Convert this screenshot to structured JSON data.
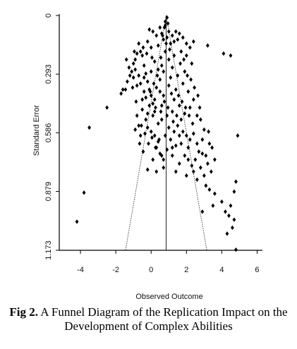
{
  "chart_data": {
    "type": "scatter",
    "title": "",
    "xlabel": "Observed Outcome",
    "ylabel": "Standard Error",
    "xlim": [
      -5.2,
      6.3
    ],
    "ylim": [
      1.173,
      0
    ],
    "x_ticks": [
      -4,
      -2,
      0,
      2,
      4,
      6
    ],
    "x_tick_labels": [
      "-4",
      "-2",
      "0",
      "2",
      "4",
      "6"
    ],
    "y_ticks": [
      0,
      0.293,
      0.586,
      0.879,
      1.173
    ],
    "y_tick_labels": [
      "0",
      "0.293",
      "0.586",
      "0.879",
      "1.173"
    ],
    "estimate": 0.85,
    "funnel_apex": [
      0.85,
      0
    ],
    "funnel_left_base": [
      -1.45,
      1.173
    ],
    "funnel_right_base": [
      3.15,
      1.173
    ],
    "points": [
      [
        -4.2,
        1.03
      ],
      [
        -3.8,
        0.885
      ],
      [
        -3.5,
        0.56
      ],
      [
        -2.5,
        0.46
      ],
      [
        -1.7,
        0.39
      ],
      [
        -1.6,
        0.37
      ],
      [
        -1.45,
        0.37
      ],
      [
        -1.35,
        0.33
      ],
      [
        -1.2,
        0.3
      ],
      [
        -1.1,
        0.28
      ],
      [
        -1.0,
        0.24
      ],
      [
        -0.9,
        0.22
      ],
      [
        -0.8,
        0.19
      ],
      [
        -0.6,
        0.18
      ],
      [
        -0.5,
        0.2
      ],
      [
        -0.4,
        0.25
      ],
      [
        -0.3,
        0.29
      ],
      [
        -0.2,
        0.33
      ],
      [
        -0.1,
        0.37
      ],
      [
        0.0,
        0.4
      ],
      [
        0.1,
        0.44
      ],
      [
        0.2,
        0.48
      ],
      [
        -0.5,
        0.47
      ],
      [
        -0.7,
        0.55
      ],
      [
        -0.8,
        0.5
      ],
      [
        -0.9,
        0.57
      ],
      [
        -0.6,
        0.6
      ],
      [
        -0.3,
        0.52
      ],
      [
        -0.2,
        0.56
      ],
      [
        0.0,
        0.58
      ],
      [
        0.2,
        0.6
      ],
      [
        0.3,
        0.66
      ],
      [
        0.4,
        0.63
      ],
      [
        0.5,
        0.69
      ],
      [
        0.7,
        0.72
      ],
      [
        0.9,
        0.67
      ],
      [
        1.1,
        0.62
      ],
      [
        1.2,
        0.7
      ],
      [
        1.4,
        0.65
      ],
      [
        1.6,
        0.6
      ],
      [
        1.8,
        0.58
      ],
      [
        2.0,
        0.6
      ],
      [
        2.2,
        0.62
      ],
      [
        2.4,
        0.59
      ],
      [
        2.6,
        0.64
      ],
      [
        2.7,
        0.68
      ],
      [
        2.5,
        0.72
      ],
      [
        2.3,
        0.75
      ],
      [
        2.9,
        0.62
      ],
      [
        3.0,
        0.57
      ],
      [
        2.8,
        0.52
      ],
      [
        2.6,
        0.5
      ],
      [
        2.2,
        0.46
      ],
      [
        1.9,
        0.49
      ],
      [
        1.7,
        0.52
      ],
      [
        1.5,
        0.55
      ],
      [
        -0.1,
        0.07
      ],
      [
        0.1,
        0.08
      ],
      [
        0.3,
        0.1
      ],
      [
        0.5,
        0.06
      ],
      [
        0.6,
        0.09
      ],
      [
        0.7,
        0.12
      ],
      [
        0.8,
        0.05
      ],
      [
        0.9,
        0.11
      ],
      [
        1.0,
        0.08
      ],
      [
        1.1,
        0.14
      ],
      [
        1.2,
        0.1
      ],
      [
        1.3,
        0.13
      ],
      [
        1.4,
        0.08
      ],
      [
        1.5,
        0.12
      ],
      [
        1.6,
        0.09
      ],
      [
        1.8,
        0.11
      ],
      [
        2.0,
        0.14
      ],
      [
        2.2,
        0.16
      ],
      [
        2.4,
        0.13
      ],
      [
        1.7,
        0.18
      ],
      [
        1.3,
        0.2
      ],
      [
        1.0,
        0.22
      ],
      [
        0.6,
        0.25
      ],
      [
        0.2,
        0.23
      ],
      [
        0.0,
        0.16
      ],
      [
        -0.2,
        0.13
      ],
      [
        0.4,
        0.15
      ],
      [
        0.8,
        0.18
      ],
      [
        1.2,
        0.26
      ],
      [
        1.5,
        0.3
      ],
      [
        1.8,
        0.34
      ],
      [
        2.1,
        0.38
      ],
      [
        2.4,
        0.42
      ],
      [
        0.5,
        0.32
      ],
      [
        0.3,
        0.36
      ],
      [
        0.7,
        0.4
      ],
      [
        1.0,
        0.35
      ],
      [
        1.3,
        0.42
      ],
      [
        1.6,
        0.45
      ],
      [
        0.9,
        0.5
      ],
      [
        0.6,
        0.45
      ],
      [
        0.2,
        0.42
      ],
      [
        -0.3,
        0.41
      ],
      [
        -0.6,
        0.34
      ],
      [
        -0.4,
        0.31
      ],
      [
        0.0,
        0.28
      ],
      [
        0.4,
        0.27
      ],
      [
        1.1,
        0.31
      ],
      [
        1.4,
        0.37
      ],
      [
        1.9,
        0.28
      ],
      [
        2.3,
        0.24
      ],
      [
        2.0,
        0.2
      ],
      [
        0.7,
        0.28
      ],
      [
        0.5,
        0.38
      ],
      [
        1.2,
        0.48
      ],
      [
        1.0,
        0.56
      ],
      [
        0.8,
        0.6
      ],
      [
        0.4,
        0.54
      ],
      [
        0.1,
        0.5
      ],
      [
        -0.1,
        0.45
      ],
      [
        -0.4,
        0.38
      ],
      [
        -0.7,
        0.3
      ],
      [
        -0.9,
        0.27
      ],
      [
        -1.0,
        0.31
      ],
      [
        -0.8,
        0.35
      ],
      [
        -0.5,
        0.42
      ],
      [
        -0.2,
        0.49
      ],
      [
        0.6,
        0.52
      ],
      [
        1.3,
        0.58
      ],
      [
        1.7,
        0.64
      ],
      [
        2.1,
        0.66
      ],
      [
        2.9,
        0.69
      ],
      [
        3.1,
        0.7
      ],
      [
        3.2,
        0.74
      ],
      [
        3.4,
        0.78
      ],
      [
        3.0,
        0.8
      ],
      [
        2.6,
        0.82
      ],
      [
        2.4,
        0.78
      ],
      [
        3.3,
        0.87
      ],
      [
        3.6,
        0.89
      ],
      [
        3.5,
        0.95
      ],
      [
        4.0,
        0.93
      ],
      [
        4.2,
        0.98
      ],
      [
        4.4,
        1.0
      ],
      [
        4.5,
        0.95
      ],
      [
        4.7,
        1.02
      ],
      [
        4.8,
        0.83
      ],
      [
        4.7,
        0.88
      ],
      [
        4.9,
        0.6
      ],
      [
        4.1,
        0.19
      ],
      [
        4.5,
        0.2
      ],
      [
        3.2,
        0.15
      ],
      [
        -0.2,
        0.77
      ],
      [
        0.3,
        0.78
      ],
      [
        0.7,
        0.76
      ],
      [
        1.6,
        0.74
      ],
      [
        2.9,
        0.98
      ],
      [
        3.3,
        0.64
      ],
      [
        4.8,
        1.17
      ],
      [
        0.9,
        0.01
      ],
      [
        0.8,
        0.03
      ],
      [
        0.75,
        0.06
      ],
      [
        0.95,
        0.04
      ],
      [
        0.65,
        0.1
      ],
      [
        0.85,
        0.14
      ],
      [
        1.05,
        0.17
      ],
      [
        0.55,
        0.21
      ],
      [
        0.35,
        0.3
      ],
      [
        0.15,
        0.34
      ],
      [
        -0.05,
        0.38
      ],
      [
        1.55,
        0.4
      ],
      [
        1.75,
        0.43
      ],
      [
        1.95,
        0.46
      ],
      [
        2.15,
        0.5
      ],
      [
        2.35,
        0.54
      ],
      [
        0.45,
        0.62
      ],
      [
        0.25,
        0.66
      ],
      [
        0.05,
        0.61
      ],
      [
        -0.15,
        0.64
      ],
      [
        -0.35,
        0.59
      ],
      [
        -0.55,
        0.55
      ],
      [
        1.45,
        0.5
      ],
      [
        1.25,
        0.53
      ],
      [
        0.95,
        0.46
      ],
      [
        0.75,
        0.43
      ],
      [
        1.15,
        0.39
      ],
      [
        0.55,
        0.48
      ],
      [
        0.25,
        0.46
      ],
      [
        -0.85,
        0.43
      ],
      [
        -1.05,
        0.36
      ],
      [
        -1.25,
        0.26
      ],
      [
        -1.4,
        0.22
      ],
      [
        -0.95,
        0.18
      ],
      [
        -0.7,
        0.14
      ],
      [
        -0.45,
        0.16
      ],
      [
        -0.25,
        0.19
      ],
      [
        0.05,
        0.21
      ],
      [
        1.65,
        0.24
      ],
      [
        1.85,
        0.22
      ],
      [
        2.05,
        0.3
      ],
      [
        2.25,
        0.32
      ],
      [
        2.45,
        0.36
      ],
      [
        2.65,
        0.4
      ],
      [
        2.75,
        0.46
      ],
      [
        3.25,
        0.58
      ],
      [
        3.45,
        0.66
      ],
      [
        3.6,
        0.72
      ],
      [
        2.1,
        0.72
      ],
      [
        1.9,
        0.7
      ],
      [
        1.2,
        0.66
      ],
      [
        0.6,
        0.7
      ],
      [
        0.1,
        0.72
      ],
      [
        -0.45,
        0.68
      ],
      [
        -0.65,
        0.64
      ],
      [
        1.4,
        0.78
      ],
      [
        2.0,
        0.8
      ],
      [
        2.8,
        0.76
      ],
      [
        3.1,
        0.85
      ],
      [
        4.6,
        1.06
      ],
      [
        4.3,
        1.09
      ]
    ]
  },
  "caption": {
    "label": "Fig 2.",
    "text": " A Funnel Diagram of the Replication Impact on the Development of Complex Abilities"
  }
}
